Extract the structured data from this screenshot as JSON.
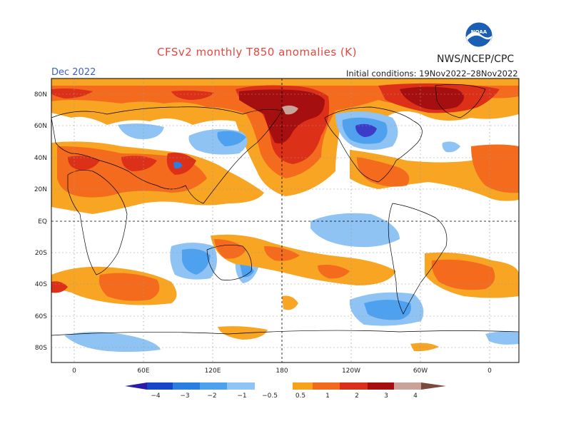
{
  "header": {
    "title": "CFSv2 monthly T850 anomalies (K)",
    "agency": "NWS/NCEP/CPC",
    "month": "Dec 2022",
    "initial_conditions": "Initial conditions: 19Nov2022–28Nov2022",
    "logo_text": "NOAA"
  },
  "map": {
    "lat_labels": [
      "80N",
      "60N",
      "40N",
      "20N",
      "EQ",
      "20S",
      "40S",
      "60S",
      "80S"
    ],
    "lon_labels": [
      "0",
      "60E",
      "120E",
      "180",
      "120W",
      "60W",
      "0"
    ]
  },
  "colorbar": {
    "labels": [
      "−4",
      "−3",
      "−2",
      "−1",
      "−0.5",
      "0.5",
      "1",
      "2",
      "3",
      "4"
    ],
    "colors_negative": [
      "#2c1ca8",
      "#1846c8",
      "#2a7ee0",
      "#4da2ef",
      "#8fc4f5"
    ],
    "colors_positive": [
      "#f6a21a",
      "#f26a1c",
      "#d8301a",
      "#a40e0e",
      "#c9a39a",
      "#7b4a3c"
    ]
  },
  "colors": {
    "anomaly_0_5": "#f7a523",
    "anomaly_1": "#f56b1d",
    "anomaly_2": "#dd3019",
    "anomaly_3": "#a50f0f",
    "anomaly_4": "#c8a39b",
    "anomaly_neg_0_5": "#8ec3f4",
    "anomaly_neg_1": "#4ea1ee",
    "anomaly_neg_2": "#2a7fe0",
    "anomaly_neg_3": "#3c3cc8"
  }
}
